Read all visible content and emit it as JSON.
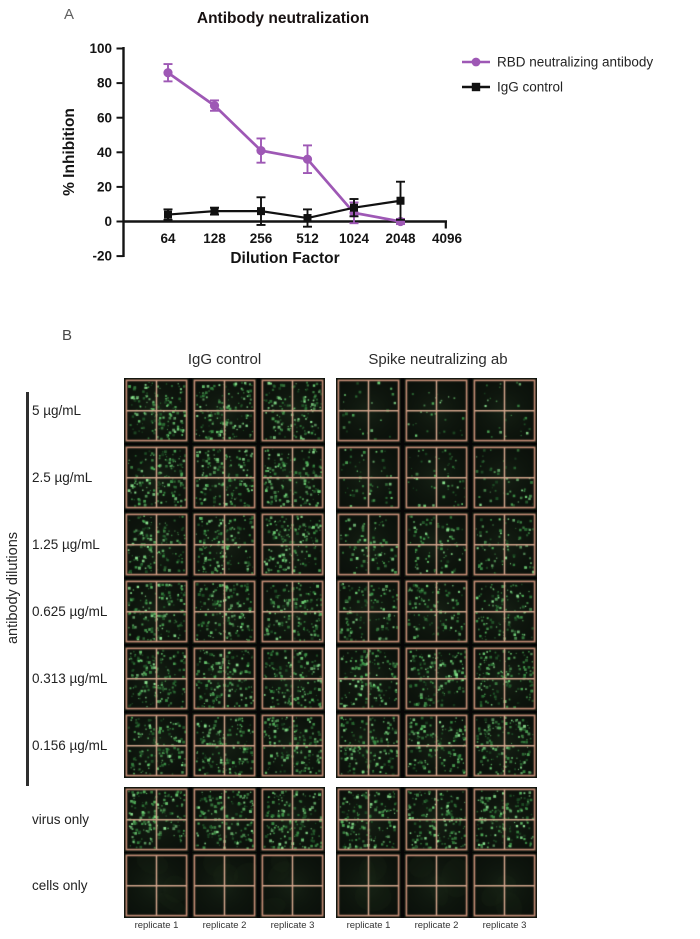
{
  "panel_a": {
    "label": "A"
  },
  "chart_data": {
    "type": "line",
    "title": "Antibody neutralization",
    "xlabel": "Dilution Factor",
    "ylabel": "% Inhibition",
    "x_scale": "log2",
    "xticks": [
      64,
      128,
      256,
      512,
      1024,
      2048,
      4096
    ],
    "yticks": [
      -20,
      0,
      20,
      40,
      60,
      80,
      100
    ],
    "ylim": [
      -20,
      100
    ],
    "grid": false,
    "legend_position": "right",
    "series": [
      {
        "name": "RBD neutralizing antibody",
        "color": "#9e58b5",
        "marker": "circle",
        "x": [
          64,
          128,
          256,
          512,
          1024,
          2048
        ],
        "values": [
          86,
          67,
          41,
          36,
          5,
          0
        ],
        "errors": [
          5,
          3,
          7,
          8,
          6,
          1.5
        ]
      },
      {
        "name": "IgG control",
        "color": "#111111",
        "marker": "square",
        "x": [
          64,
          128,
          256,
          512,
          1024,
          2048
        ],
        "values": [
          4,
          6,
          6,
          2,
          8,
          12
        ],
        "errors": [
          3,
          2,
          8,
          5,
          5,
          11
        ]
      }
    ]
  },
  "panel_b": {
    "label": "B",
    "group_headers": [
      "IgG control",
      "Spike neutralizing ab"
    ],
    "side_label": "antibody dilutions",
    "replicate_labels": [
      "replicate 1",
      "replicate 2",
      "replicate 3"
    ],
    "rows": [
      {
        "label": "5 µg/mL",
        "dot_density": {
          "igg": 150,
          "spike": 26
        }
      },
      {
        "label": "2.5 µg/mL",
        "dot_density": {
          "igg": 155,
          "spike": 55
        }
      },
      {
        "label": "1.25 µg/mL",
        "dot_density": {
          "igg": 150,
          "spike": 85
        }
      },
      {
        "label": "0.625 µg/mL",
        "dot_density": {
          "igg": 155,
          "spike": 115
        }
      },
      {
        "label": "0.313  µg/mL",
        "dot_density": {
          "igg": 160,
          "spike": 140
        }
      },
      {
        "label": "0.156 µg/mL",
        "dot_density": {
          "igg": 150,
          "spike": 155
        }
      },
      {
        "label": "virus only",
        "dot_density": {
          "igg": 165,
          "spike": 165
        }
      },
      {
        "label": "cells only",
        "dot_density": {
          "igg": 0,
          "spike": 0
        }
      }
    ],
    "colors": {
      "well_background": "#0b110b",
      "well_frame": "#060606",
      "grid_line": "#c08a73",
      "cross_line": "#d2a58c",
      "dot_palette": [
        "#1f5227",
        "#2d7236",
        "#3c9247",
        "#52b25b",
        "#6fd276",
        "#8ee893"
      ]
    }
  }
}
